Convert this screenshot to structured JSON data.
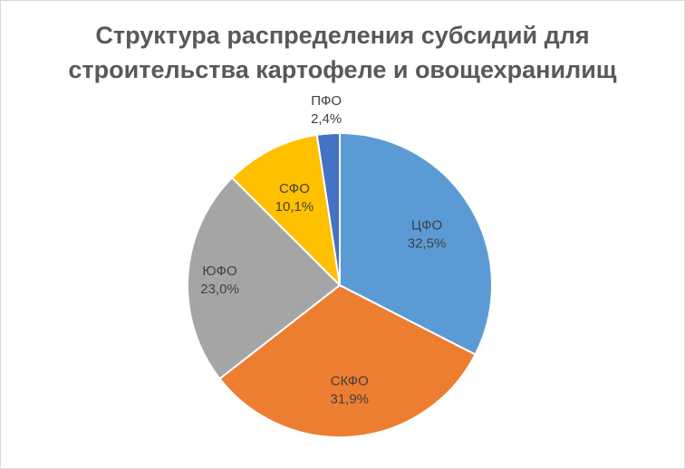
{
  "chart_data": {
    "type": "pie",
    "title_lines": [
      "Структура распределения субсидий для",
      "строительства картофеле и овощехранилищ"
    ],
    "slices": [
      {
        "name": "ЦФО",
        "value": 32.5,
        "label": "32,5%",
        "color": "#5B9BD5"
      },
      {
        "name": "СКФО",
        "value": 31.9,
        "label": "31,9%",
        "color": "#ED7D31"
      },
      {
        "name": "ЮФО",
        "value": 23.0,
        "label": "23,0%",
        "color": "#A5A5A5"
      },
      {
        "name": "СФО",
        "value": 10.1,
        "label": "10,1%",
        "color": "#FFC000"
      },
      {
        "name": "ПФО",
        "value": 2.4,
        "label": "2,4%",
        "color": "#4472C4"
      }
    ],
    "start_angle_deg": 0,
    "direction": "clockwise",
    "legend": "none",
    "data_labels": "category name and percentage"
  }
}
